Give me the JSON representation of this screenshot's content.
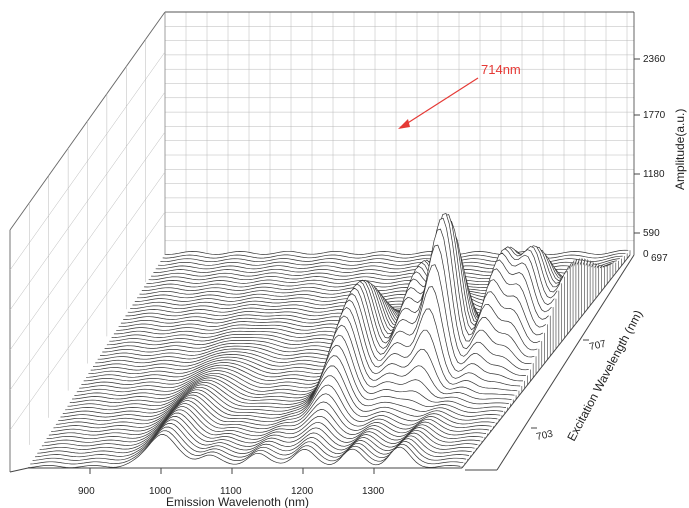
{
  "chart_data": {
    "type": "waterfall-3d",
    "title": "",
    "xlabel": "Emission Wavelenoth (nm)",
    "ylabel": "Excitation Wavelength (nm)",
    "zlabel": "Amplitude(a.u.)",
    "x_ticks": [
      "900",
      "1000",
      "1100",
      "1200",
      "1300"
    ],
    "y_ticks": [
      "707",
      "703"
    ],
    "z_ticks": [
      "0",
      "590",
      "1180",
      "1770",
      "2360"
    ],
    "z_tick_origin_suffix": "697",
    "xlim": [
      830,
      1380
    ],
    "zlim": [
      0,
      2360
    ],
    "annotation": {
      "text": "714nm",
      "target_emission_nm": 1265,
      "target_amplitude": 1770
    },
    "peaks": [
      {
        "emission_nm": 1265,
        "amplitude": 1770
      },
      {
        "emission_nm": 1170,
        "amplitude": 1180
      },
      {
        "emission_nm": 1225,
        "amplitude": 1060
      },
      {
        "emission_nm": 1315,
        "amplitude": 1010
      },
      {
        "emission_nm": 1345,
        "amplitude": 960
      },
      {
        "emission_nm": 1390,
        "amplitude": 820
      },
      {
        "emission_nm": 1000,
        "amplitude": 330
      }
    ],
    "grid": true,
    "colors": {
      "trace": "#333333",
      "annotation": "#e53935",
      "grid": "#b8b8b8"
    }
  }
}
